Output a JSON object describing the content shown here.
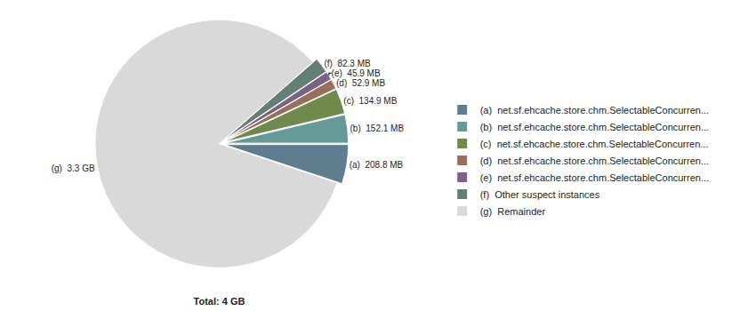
{
  "chart_data": {
    "type": "pie",
    "title": "Total: 4 GB",
    "categories": [
      "(a)  net.sf.ehcache.store.chm.SelectableConcurren...",
      "(b)  net.sf.ehcache.store.chm.SelectableConcurren...",
      "(c)  net.sf.ehcache.store.chm.SelectableConcurren...",
      "(d)  net.sf.ehcache.store.chm.SelectableConcurren...",
      "(e)  net.sf.ehcache.store.chm.SelectableConcurren...",
      "(f)  Other suspect instances",
      "(g)  Remainder"
    ],
    "values": [
      208.8,
      152.1,
      134.9,
      52.9,
      45.9,
      82.3,
      3419
    ],
    "value_labels": [
      "(a)  208.8 MB",
      "(b)  152.1 MB",
      "(c)  134.9 MB",
      "(d)  52.9 MB",
      "(e)  45.9 MB",
      "(f)  82.3 MB",
      "(g)  3.3 GB"
    ],
    "colors": [
      "#5f7d8e",
      "#659a98",
      "#6f8a4b",
      "#9a6e5e",
      "#7b6282",
      "#647f73",
      "#d9d9d9"
    ],
    "data_labels": true,
    "legend": "right"
  }
}
